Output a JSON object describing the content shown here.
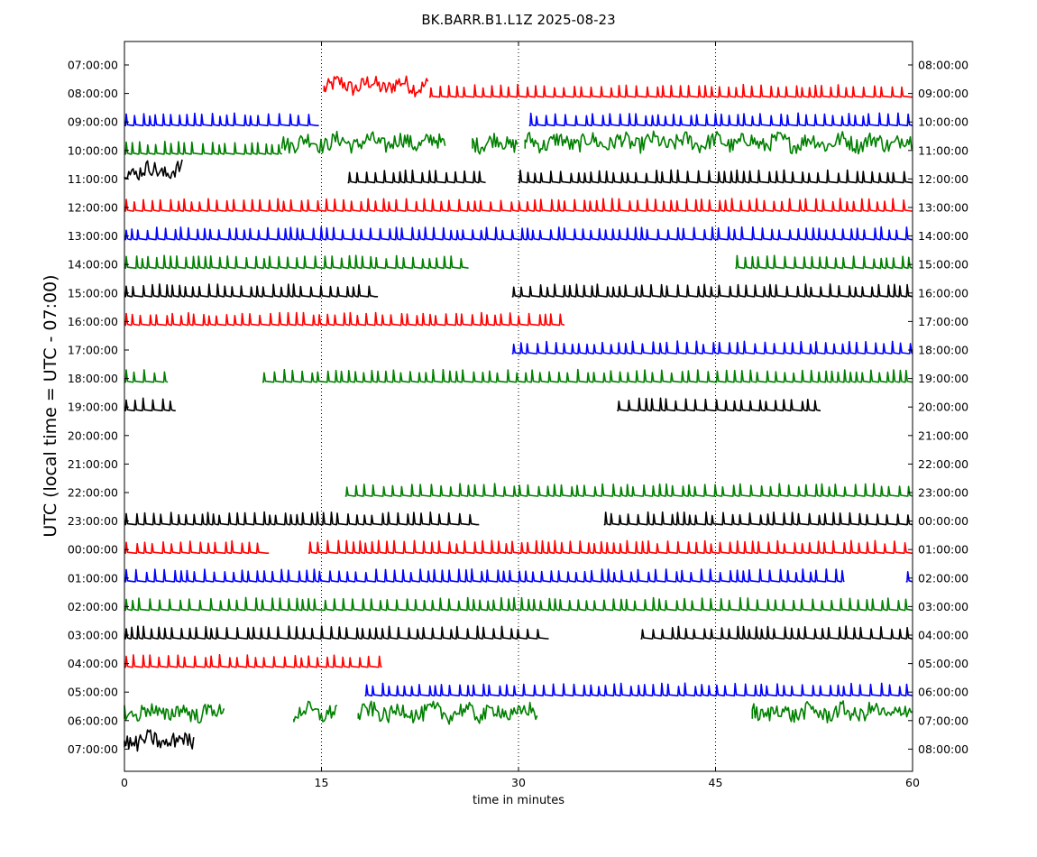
{
  "chart_data": {
    "type": "line",
    "title": "BK.BARR.B1.L1Z 2025-08-23",
    "xlabel": "time in minutes",
    "ylabel": "UTC (local time = UTC - 07:00)",
    "xlim": [
      0,
      60
    ],
    "x_ticks": [
      0,
      15,
      30,
      45,
      60
    ],
    "x_tick_labels": [
      "0",
      "15",
      "30",
      "45",
      "60"
    ],
    "vertical_grid_at": [
      15,
      30,
      45
    ],
    "grid_style": "dotted",
    "left_tick_labels": [
      "07:00:00",
      "08:00:00",
      "09:00:00",
      "10:00:00",
      "11:00:00",
      "12:00:00",
      "13:00:00",
      "14:00:00",
      "15:00:00",
      "16:00:00",
      "17:00:00",
      "18:00:00",
      "19:00:00",
      "20:00:00",
      "21:00:00",
      "22:00:00",
      "23:00:00",
      "00:00:00",
      "01:00:00",
      "02:00:00",
      "03:00:00",
      "04:00:00",
      "05:00:00",
      "06:00:00",
      "07:00:00"
    ],
    "right_tick_labels": [
      "08:00:00",
      "09:00:00",
      "10:00:00",
      "11:00:00",
      "12:00:00",
      "13:00:00",
      "14:00:00",
      "15:00:00",
      "16:00:00",
      "17:00:00",
      "18:00:00",
      "19:00:00",
      "20:00:00",
      "21:00:00",
      "22:00:00",
      "23:00:00",
      "00:00:00",
      "01:00:00",
      "02:00:00",
      "03:00:00",
      "04:00:00",
      "05:00:00",
      "06:00:00",
      "07:00:00",
      "08:00:00"
    ],
    "color_cycle": [
      "#ff0000",
      "#0000ff",
      "#008000",
      "#000000"
    ],
    "traces": [
      {
        "row": 1,
        "color": "#ff0000",
        "segments": [
          {
            "x0": 15.2,
            "x1": 23.2,
            "style": "noisy"
          },
          {
            "x0": 23.2,
            "x1": 60,
            "style": "spikes"
          }
        ]
      },
      {
        "row": 2,
        "color": "#0000ff",
        "segments": [
          {
            "x0": 0,
            "x1": 14.8,
            "style": "spikes"
          },
          {
            "x0": 30.8,
            "x1": 60,
            "style": "spikes"
          }
        ]
      },
      {
        "row": 3,
        "color": "#008000",
        "segments": [
          {
            "x0": 0,
            "x1": 12,
            "style": "spikes"
          },
          {
            "x0": 12,
            "x1": 24.5,
            "style": "noisy"
          },
          {
            "x0": 26.5,
            "x1": 30,
            "style": "noisy"
          },
          {
            "x0": 30.5,
            "x1": 60,
            "style": "noisy"
          }
        ]
      },
      {
        "row": 4,
        "color": "#000000",
        "segments": [
          {
            "x0": 0,
            "x1": 4.5,
            "style": "noisy"
          },
          {
            "x0": 17,
            "x1": 27.5,
            "style": "spikes"
          },
          {
            "x0": 30,
            "x1": 60,
            "style": "spikes"
          }
        ]
      },
      {
        "row": 5,
        "color": "#ff0000",
        "segments": [
          {
            "x0": 0,
            "x1": 60,
            "style": "spikes"
          }
        ]
      },
      {
        "row": 6,
        "color": "#0000ff",
        "segments": [
          {
            "x0": 0,
            "x1": 60,
            "style": "spikes"
          }
        ]
      },
      {
        "row": 7,
        "color": "#008000",
        "segments": [
          {
            "x0": 0,
            "x1": 26.2,
            "style": "spikes"
          },
          {
            "x0": 46.5,
            "x1": 60,
            "style": "spikes"
          }
        ]
      },
      {
        "row": 8,
        "color": "#000000",
        "segments": [
          {
            "x0": 0,
            "x1": 19.3,
            "style": "spikes"
          },
          {
            "x0": 29.5,
            "x1": 60,
            "style": "spikes"
          }
        ]
      },
      {
        "row": 9,
        "color": "#ff0000",
        "segments": [
          {
            "x0": 0,
            "x1": 33.5,
            "style": "spikes"
          }
        ]
      },
      {
        "row": 10,
        "color": "#0000ff",
        "segments": [
          {
            "x0": 29.5,
            "x1": 60,
            "style": "spikes"
          }
        ]
      },
      {
        "row": 11,
        "color": "#008000",
        "segments": [
          {
            "x0": 0,
            "x1": 3.3,
            "style": "spikes"
          },
          {
            "x0": 10.5,
            "x1": 60,
            "style": "spikes"
          }
        ]
      },
      {
        "row": 12,
        "color": "#000000",
        "segments": [
          {
            "x0": 0,
            "x1": 3.9,
            "style": "spikes"
          },
          {
            "x0": 37.5,
            "x1": 53,
            "style": "spikes"
          }
        ]
      },
      {
        "row": 13,
        "color": "#ff0000",
        "segments": []
      },
      {
        "row": 14,
        "color": "#0000ff",
        "segments": []
      },
      {
        "row": 15,
        "color": "#008000",
        "segments": [
          {
            "x0": 16.8,
            "x1": 60,
            "style": "spikes"
          }
        ]
      },
      {
        "row": 16,
        "color": "#000000",
        "segments": [
          {
            "x0": 0,
            "x1": 27,
            "style": "spikes"
          },
          {
            "x0": 36.5,
            "x1": 60,
            "style": "spikes"
          }
        ]
      },
      {
        "row": 17,
        "color": "#ff0000",
        "segments": [
          {
            "x0": 0,
            "x1": 11,
            "style": "spikes"
          },
          {
            "x0": 14,
            "x1": 60,
            "style": "spikes"
          }
        ]
      },
      {
        "row": 18,
        "color": "#0000ff",
        "segments": [
          {
            "x0": 0,
            "x1": 54.8,
            "style": "spikes"
          },
          {
            "x0": 59.5,
            "x1": 60,
            "style": "spikes"
          }
        ]
      },
      {
        "row": 19,
        "color": "#008000",
        "segments": [
          {
            "x0": 0,
            "x1": 60,
            "style": "spikes"
          }
        ]
      },
      {
        "row": 20,
        "color": "#000000",
        "segments": [
          {
            "x0": 0,
            "x1": 32.3,
            "style": "spikes"
          },
          {
            "x0": 39.3,
            "x1": 60,
            "style": "spikes"
          }
        ]
      },
      {
        "row": 21,
        "color": "#ff0000",
        "segments": [
          {
            "x0": 0,
            "x1": 19.6,
            "style": "spikes"
          }
        ]
      },
      {
        "row": 22,
        "color": "#0000ff",
        "segments": [
          {
            "x0": 18.3,
            "x1": 60,
            "style": "spikes"
          }
        ]
      },
      {
        "row": 23,
        "color": "#008000",
        "segments": [
          {
            "x0": 0,
            "x1": 7.6,
            "style": "noisy"
          },
          {
            "x0": 12.9,
            "x1": 16.3,
            "style": "noisy"
          },
          {
            "x0": 17.8,
            "x1": 31.5,
            "style": "noisy"
          },
          {
            "x0": 47.8,
            "x1": 60,
            "style": "noisy"
          }
        ]
      },
      {
        "row": 24,
        "color": "#000000",
        "segments": [
          {
            "x0": 0,
            "x1": 5.3,
            "style": "noisy"
          }
        ]
      }
    ]
  }
}
